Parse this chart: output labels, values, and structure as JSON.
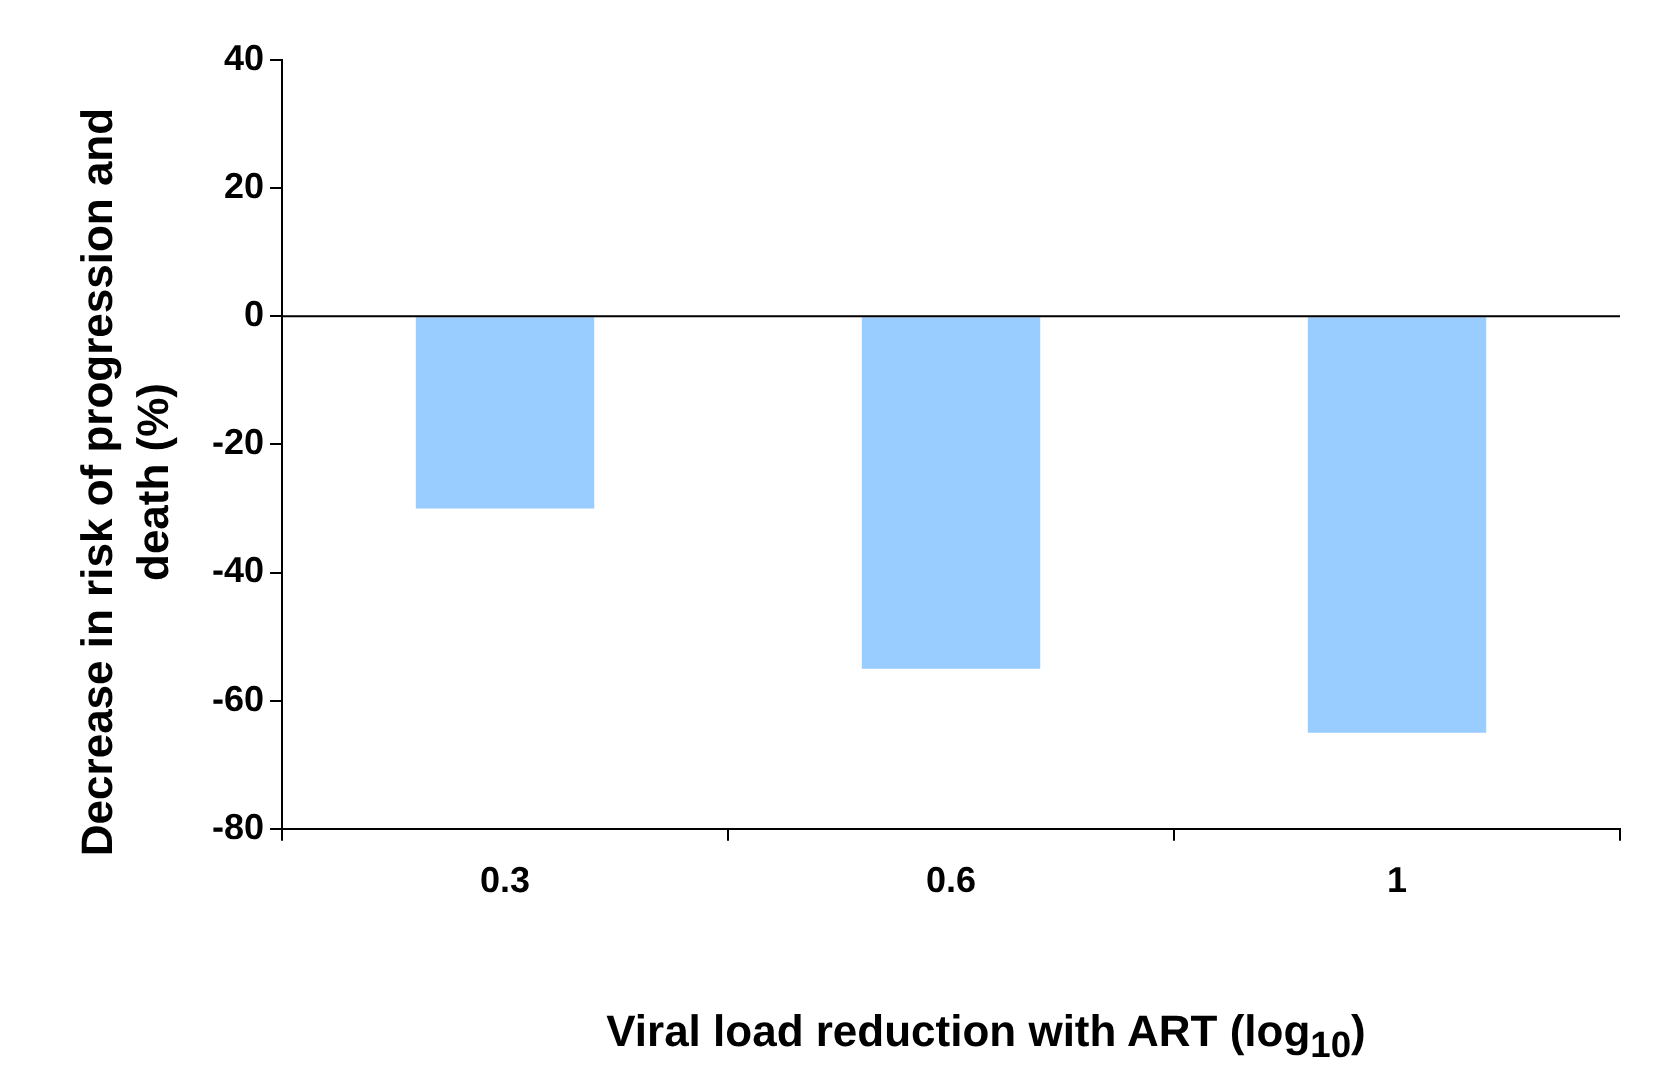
{
  "chart_data": {
    "type": "bar",
    "xlabel": "Viral load reduction with ART (log$_{10}$)",
    "ylabel": "Decrease in risk of progression and death (%)",
    "categories": [
      "0.3",
      "0.6",
      "1"
    ],
    "values": [
      -30,
      -55,
      -65
    ],
    "color": "#99ccff",
    "ylim": [
      -80,
      40
    ],
    "yticks": [
      -80,
      -60,
      -40,
      -20,
      0,
      20,
      40
    ],
    "grid": false,
    "legend": false,
    "ref_lines": [
      {
        "axis": "y",
        "value": 0,
        "color": "#000000"
      }
    ]
  }
}
